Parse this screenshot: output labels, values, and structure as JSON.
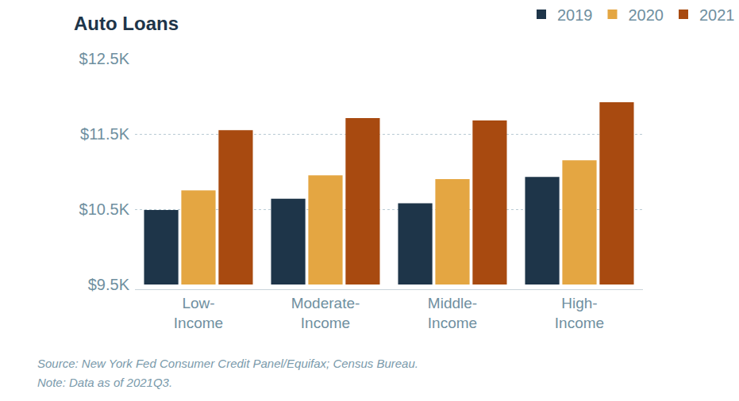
{
  "chart_data": {
    "type": "bar",
    "title": "Auto Loans",
    "categories": [
      "Low-Income",
      "Moderate-Income",
      "Middle-Income",
      "High-Income"
    ],
    "series": [
      {
        "name": "2019",
        "color": "#1e3549",
        "values": [
          10490,
          10640,
          10580,
          10930
        ]
      },
      {
        "name": "2020",
        "color": "#e4a642",
        "values": [
          10750,
          10950,
          10900,
          11150
        ]
      },
      {
        "name": "2021",
        "color": "#a84a10",
        "values": [
          11550,
          11710,
          11680,
          11920
        ]
      }
    ],
    "ylim": [
      9500,
      12500
    ],
    "yticks": [
      {
        "value": 9500,
        "label": "$9.5K"
      },
      {
        "value": 10500,
        "label": "$10.5K"
      },
      {
        "value": 11500,
        "label": "$11.5K"
      },
      {
        "value": 12500,
        "label": "$12.5K"
      }
    ],
    "grid": true,
    "legend": "top-right",
    "annotations": [
      "Source: New York Fed Consumer Credit Panel/Equifax; Census Bureau.",
      "Note: Data as of 2021Q3."
    ]
  }
}
